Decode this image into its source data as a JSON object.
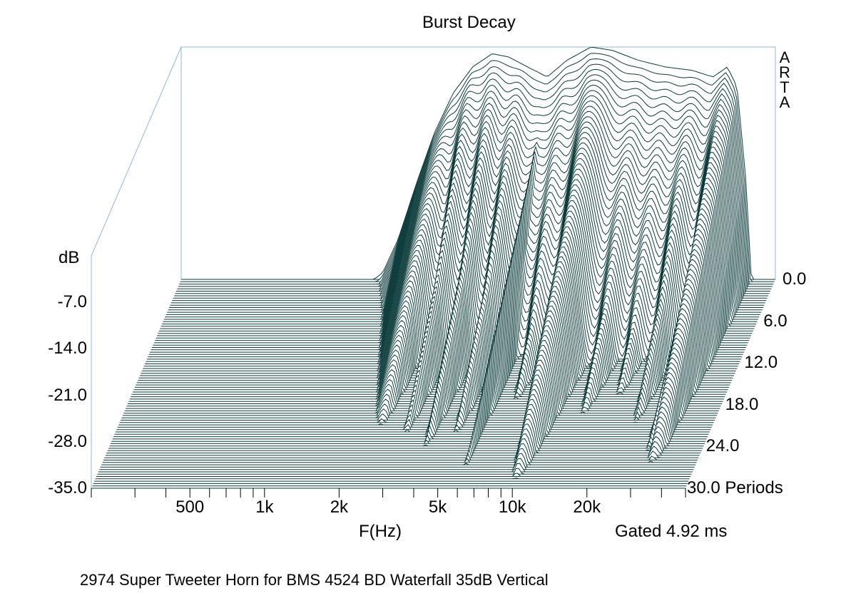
{
  "chart_data": {
    "type": "waterfall",
    "title": "Burst Decay",
    "watermark": "ARTA",
    "y_axis": {
      "unit_label": "dB",
      "ticks": [
        "-7.0",
        "-14.0",
        "-21.0",
        "-28.0",
        "-35.0"
      ],
      "range": [
        -35,
        0
      ]
    },
    "x_axis": {
      "label": "F(Hz)",
      "scale": "log",
      "range_hz": [
        200,
        50000
      ],
      "ticks": [
        {
          "hz": 500,
          "label": "500"
        },
        {
          "hz": 1000,
          "label": "1k"
        },
        {
          "hz": 2000,
          "label": "2k"
        },
        {
          "hz": 5000,
          "label": "5k"
        },
        {
          "hz": 10000,
          "label": "10k"
        },
        {
          "hz": 20000,
          "label": "20k"
        }
      ]
    },
    "z_axis": {
      "unit": "Periods",
      "ticks": [
        "0.0",
        "6.0",
        "12.0",
        "18.0",
        "24.0",
        "30.0 Periods"
      ],
      "range": [
        0,
        30
      ]
    },
    "gate_text": "Gated 4.92 ms",
    "line_color": "#0b3a3a",
    "frame_color": "#8fb8e0",
    "footer": "2974 Super Tweeter Horn for BMS 4524  BD Waterfall 35dB Vertical",
    "peak_response_db": [
      {
        "hz": 1200,
        "db": -35
      },
      {
        "hz": 1300,
        "db": -34
      },
      {
        "hz": 1500,
        "db": -29
      },
      {
        "hz": 1800,
        "db": -20
      },
      {
        "hz": 2100,
        "db": -13
      },
      {
        "hz": 2500,
        "db": -7
      },
      {
        "hz": 3000,
        "db": -3
      },
      {
        "hz": 3600,
        "db": -1
      },
      {
        "hz": 4200,
        "db": -1.5
      },
      {
        "hz": 5000,
        "db": -3
      },
      {
        "hz": 6000,
        "db": -4.5
      },
      {
        "hz": 7200,
        "db": -2
      },
      {
        "hz": 9000,
        "db": 0
      },
      {
        "hz": 11000,
        "db": -0.5
      },
      {
        "hz": 14000,
        "db": -2
      },
      {
        "hz": 18000,
        "db": -3
      },
      {
        "hz": 23000,
        "db": -3.5
      },
      {
        "hz": 28000,
        "db": -4.5
      },
      {
        "hz": 32000,
        "db": -3
      },
      {
        "hz": 35000,
        "db": -6
      },
      {
        "hz": 38000,
        "db": -20
      },
      {
        "hz": 40000,
        "db": -35
      }
    ]
  }
}
